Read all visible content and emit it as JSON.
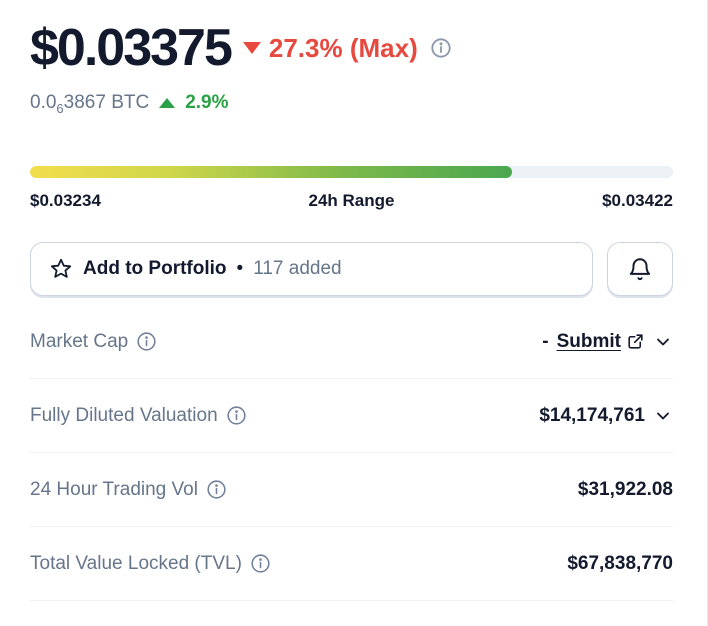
{
  "colors": {
    "price_text": "#131a2e",
    "down_red": "#e8493f",
    "up_green": "#2ba147",
    "label_slate": "#66758a",
    "range_track": "#edf0f4",
    "range_gradient_start": "#f3de4d",
    "range_gradient_end": "#4aa74f",
    "divider": "#eef1f5",
    "button_border": "#ccd5e0"
  },
  "price_section": {
    "price": "$0.03375",
    "change_pct": "27.3% (Max)",
    "change_direction": "down",
    "btc_prefix": "0.0",
    "btc_sub": "6",
    "btc_rest": "3867 BTC",
    "btc_change_pct": "2.9%",
    "btc_change_direction": "up"
  },
  "range": {
    "low": "$0.03234",
    "label": "24h Range",
    "high": "$0.03422",
    "fill_percent": 75
  },
  "actions": {
    "portfolio_label": "Add to Portfolio",
    "separator": "•",
    "added_count": "117 added",
    "bell_icon": "notification-bell",
    "star_icon": "star-outline"
  },
  "stats": {
    "rows": [
      {
        "label": "Market Cap",
        "value": "-",
        "link_label": "Submit",
        "has_external_link": true,
        "has_chevron": true
      },
      {
        "label": "Fully Diluted Valuation",
        "value": "$14,174,761",
        "has_chevron": true
      },
      {
        "label": "24 Hour Trading Vol",
        "value": "$31,922.08"
      },
      {
        "label": "Total Value Locked (TVL)",
        "value": "$67,838,770"
      }
    ]
  }
}
